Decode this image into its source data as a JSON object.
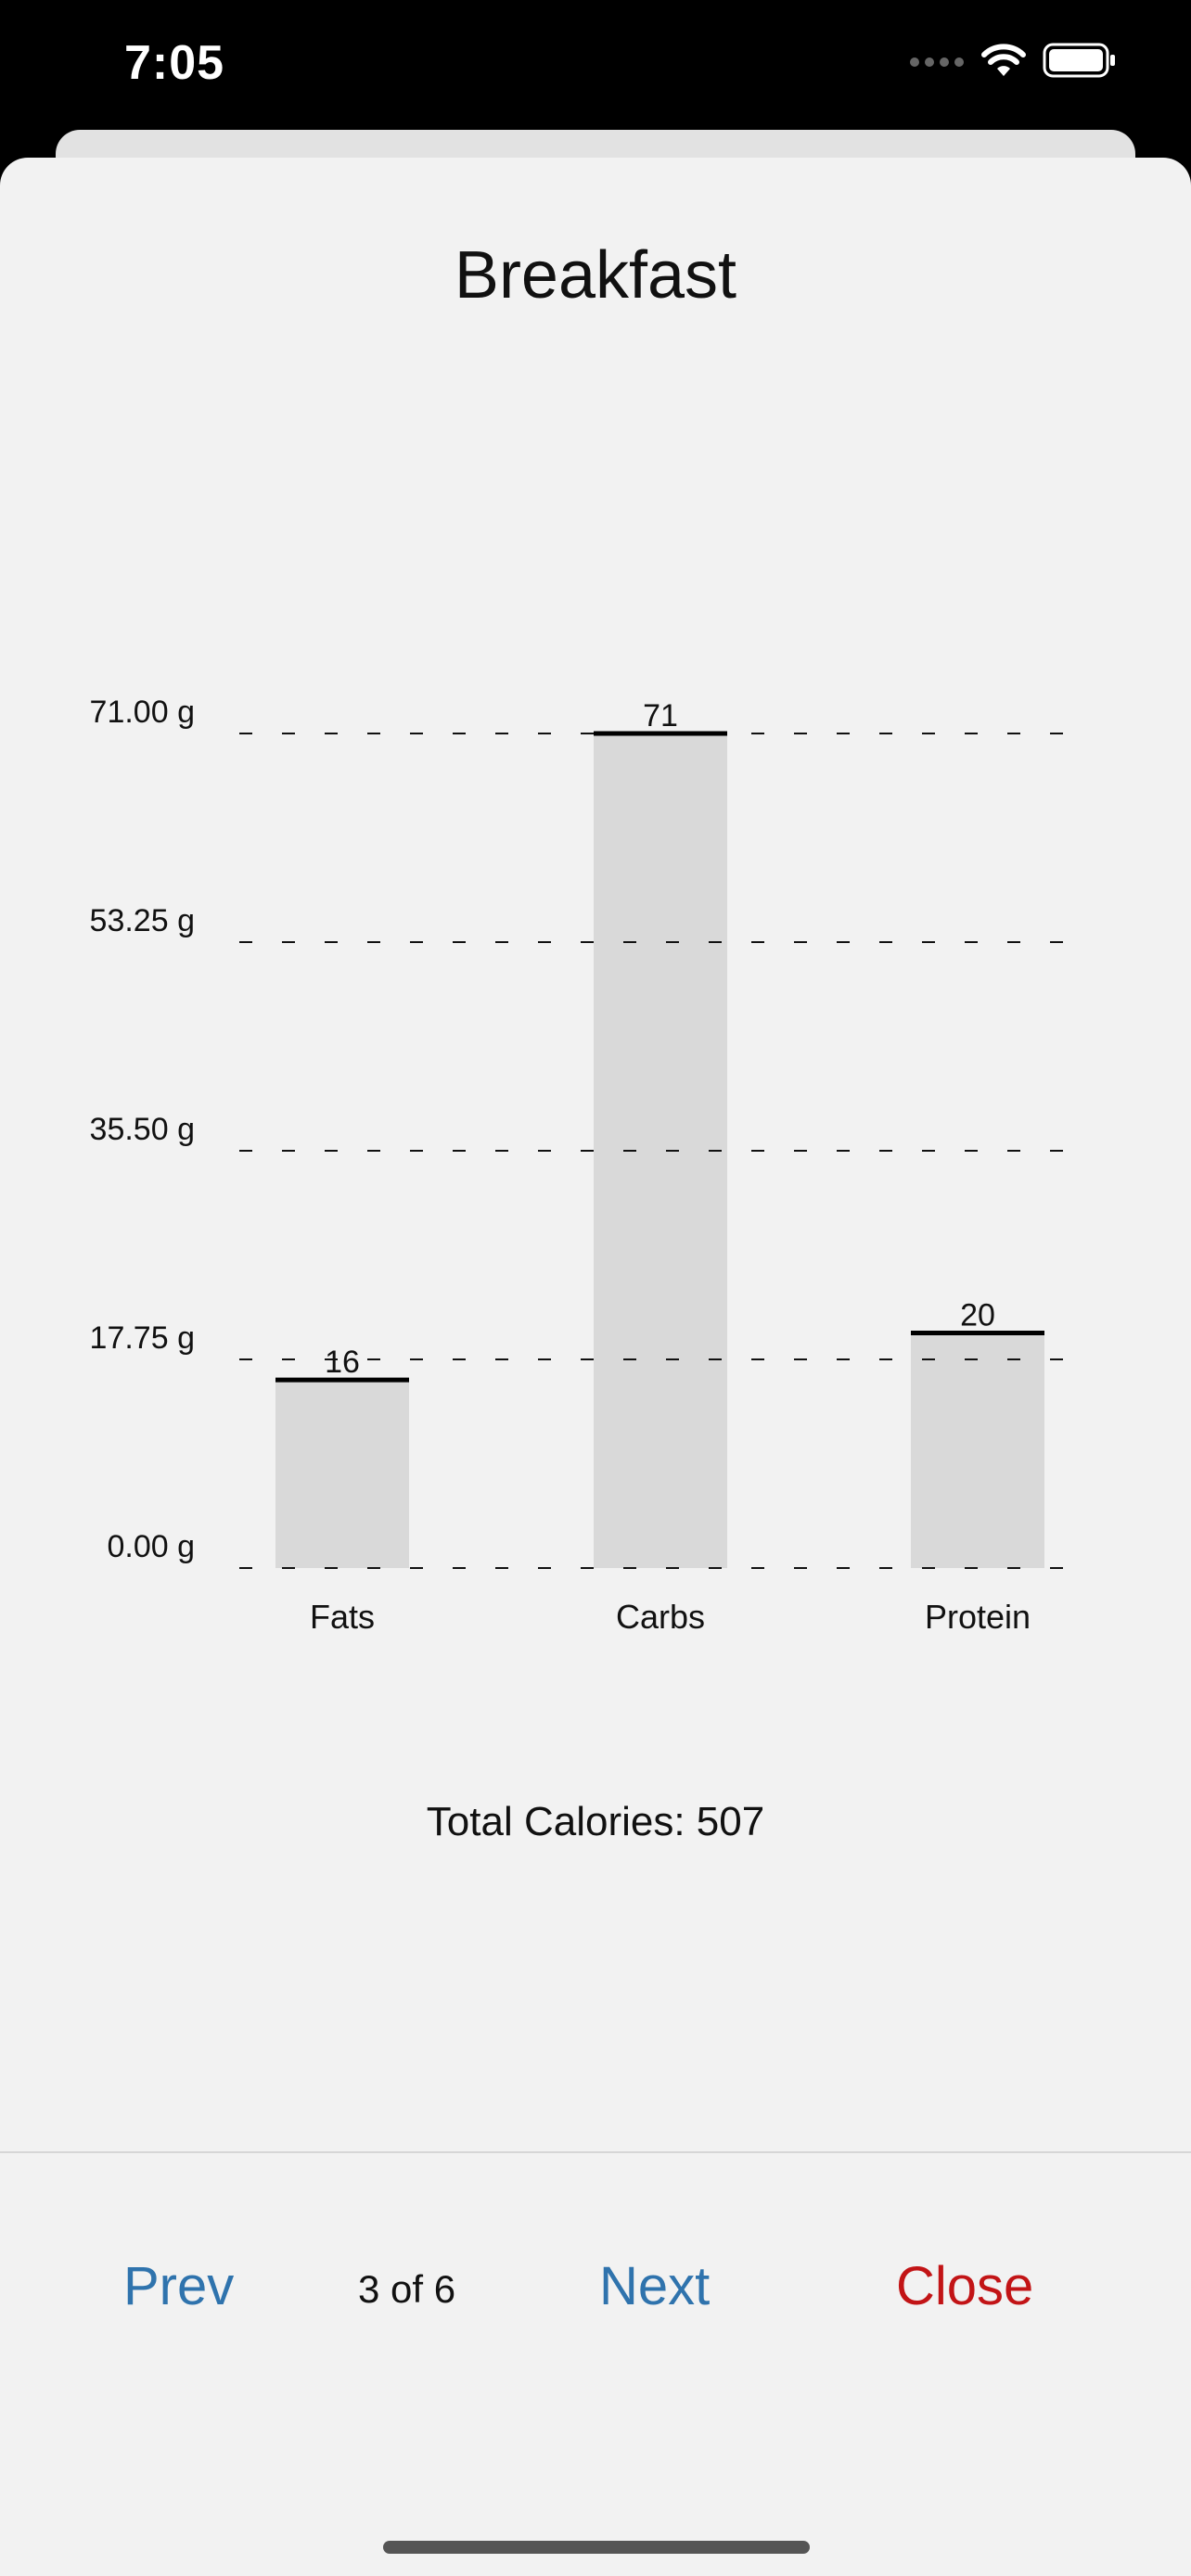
{
  "status_bar": {
    "time": "7:05",
    "icons": [
      "signal-icon",
      "wifi-icon",
      "battery-icon"
    ]
  },
  "title": "Breakfast",
  "chart_data": {
    "type": "bar",
    "categories": [
      "Fats",
      "Carbs",
      "Protein"
    ],
    "values": [
      16,
      71,
      20
    ],
    "data_labels": [
      "16",
      "71",
      "20"
    ],
    "ytick_labels": [
      "0.00 g",
      "17.75 g",
      "35.50 g",
      "53.25 g",
      "71.00 g"
    ],
    "ytick_values": [
      0,
      17.75,
      35.5,
      53.25,
      71
    ],
    "ylim": [
      0,
      71
    ],
    "grid": true,
    "bar_color": "#d9d9d9",
    "cap_color": "#000000"
  },
  "total_calories": "Total Calories: 507",
  "footer": {
    "prev_label": "Prev",
    "page_indicator": "3 of 6",
    "next_label": "Next",
    "close_label": "Close"
  },
  "colors": {
    "link": "#2f73ad",
    "destructive": "#c21416",
    "sheet_background": "#f2f2f2"
  }
}
